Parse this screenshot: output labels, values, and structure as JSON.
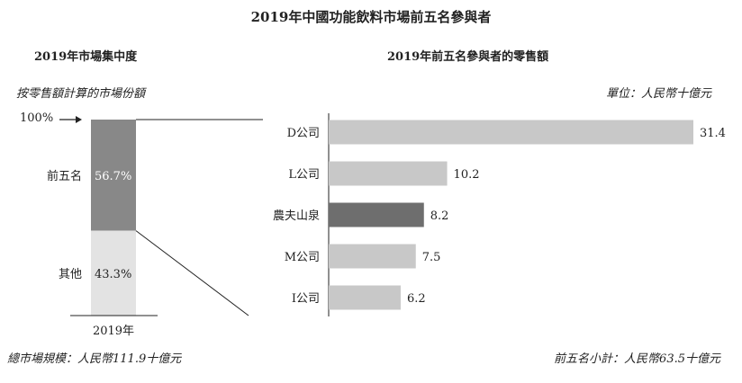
{
  "main_title": "2019年中國功能飲料市場前五名參與者",
  "left_panel": {
    "title": "2019年市場集中度",
    "subtitle": "按零售額計算的市場份額",
    "top_marker": "100%",
    "footer_note": "總市場規模：人民幣111.9十億元"
  },
  "right_panel": {
    "title": "2019年前五名參與者的零售額",
    "unit_note": "單位：人民幣十億元",
    "footer_note": "前五名小計：人民幣63.5十億元"
  },
  "chart_data": [
    {
      "type": "bar",
      "title": "2019年市場集中度",
      "categories": [
        "2019年"
      ],
      "series": [
        {
          "name": "前五名",
          "values": [
            56.7
          ],
          "value_label": "56.7%",
          "color": "#888888"
        },
        {
          "name": "其他",
          "values": [
            43.3
          ],
          "value_label": "43.3%",
          "color": "#e3e3e3"
        }
      ],
      "ylim": [
        0,
        100
      ],
      "stacked": true,
      "grid": false
    },
    {
      "type": "bar",
      "orientation": "horizontal",
      "title": "2019年前五名參與者的零售額",
      "categories": [
        "D公司",
        "L公司",
        "農夫山泉",
        "M公司",
        "I公司"
      ],
      "values": [
        31.4,
        10.2,
        8.2,
        7.5,
        6.2
      ],
      "value_labels": [
        "31.4",
        "10.2",
        "8.2",
        "7.5",
        "6.2"
      ],
      "colors": [
        "#c8c8c8",
        "#c8c8c8",
        "#6e6e6e",
        "#c8c8c8",
        "#c8c8c8"
      ],
      "xlim": [
        0,
        31.4
      ],
      "grid": false
    }
  ]
}
